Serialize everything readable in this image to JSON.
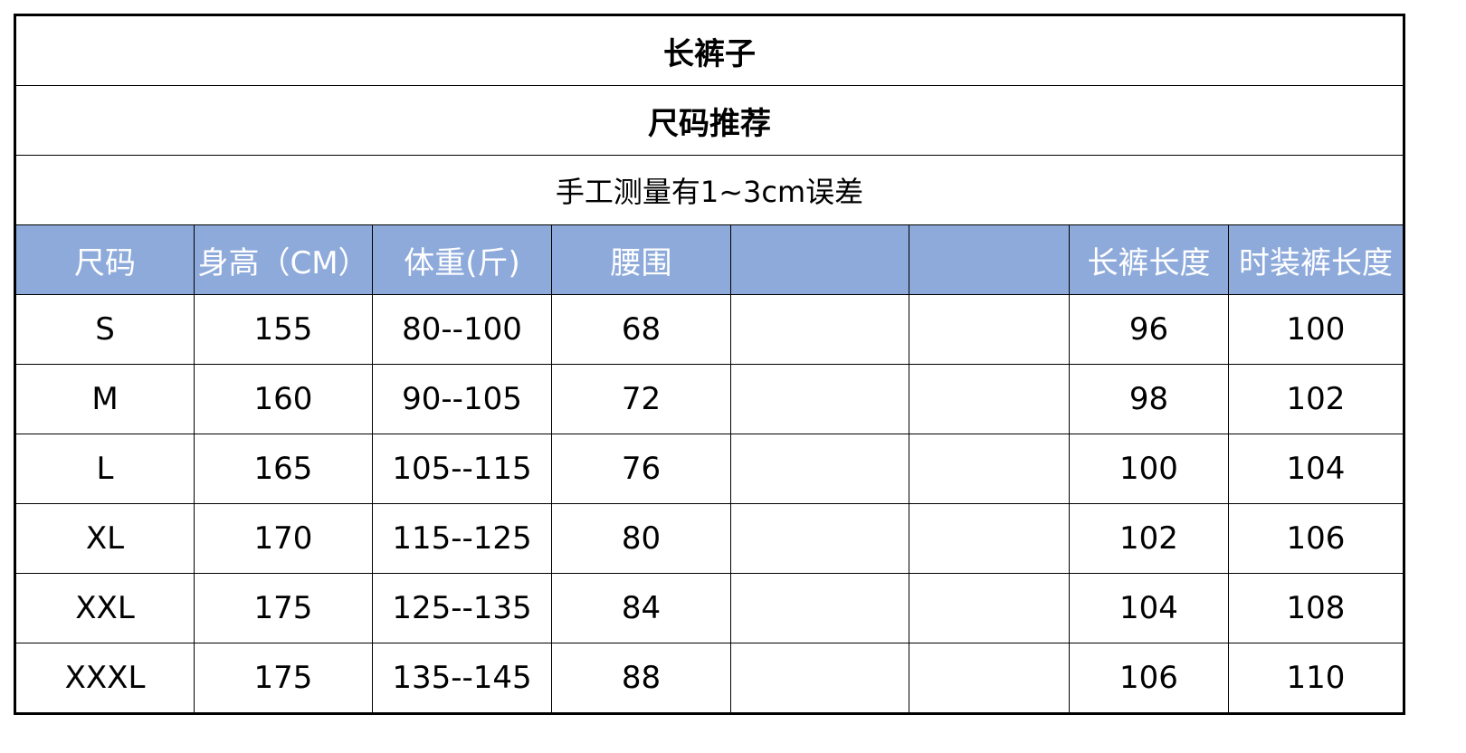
{
  "title": "长裤子",
  "subtitle": "尺码推荐",
  "note": "手工测量有1~3cm误差",
  "header_color": "#8eaadb",
  "columns": [
    "尺码",
    "身高（CM）",
    "体重(斤)",
    "腰围",
    "",
    "",
    "长裤长度",
    "时装裤长度"
  ],
  "rows": [
    [
      "S",
      "155",
      "80--100",
      "68",
      "",
      "",
      "96",
      "100"
    ],
    [
      "M",
      "160",
      "90--105",
      "72",
      "",
      "",
      "98",
      "102"
    ],
    [
      "L",
      "165",
      "105--115",
      "76",
      "",
      "",
      "100",
      "104"
    ],
    [
      "XL",
      "170",
      "115--125",
      "80",
      "",
      "",
      "102",
      "106"
    ],
    [
      "XXL",
      "175",
      "125--135",
      "84",
      "",
      "",
      "104",
      "108"
    ],
    [
      "XXXL",
      "175",
      "135--145",
      "88",
      "",
      "",
      "106",
      "110"
    ]
  ]
}
